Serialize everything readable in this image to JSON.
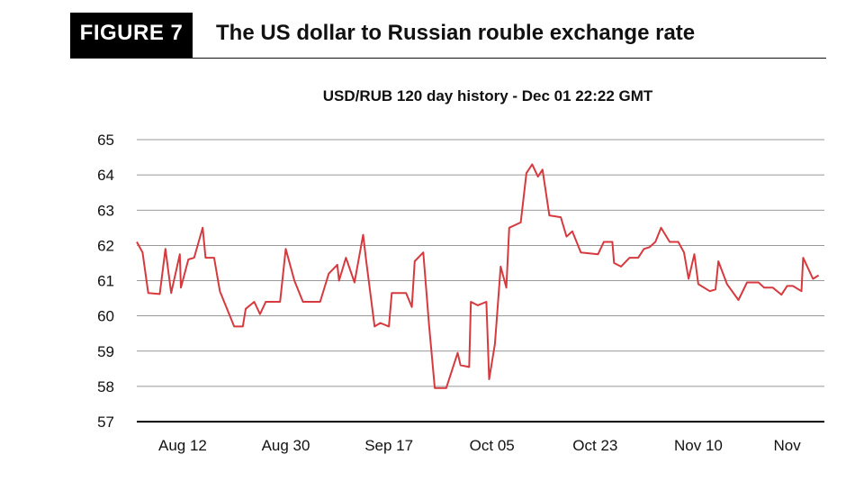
{
  "figure": {
    "badge": "FIGURE 7",
    "title": "The US dollar to Russian rouble exchange rate"
  },
  "colors": {
    "line": "#d63a3f",
    "grid": "#777777",
    "axis": "#000000"
  },
  "chart_data": {
    "type": "line",
    "title": "USD/RUB 120 day history - Dec 01 22:22 GMT",
    "xlabel": "",
    "ylabel": "",
    "ylim": [
      57,
      65
    ],
    "xlim": [
      0,
      120
    ],
    "yticks": [
      57,
      58,
      59,
      60,
      61,
      62,
      63,
      64,
      65
    ],
    "xticks": [
      {
        "x": 8,
        "label": "Aug 12"
      },
      {
        "x": 26,
        "label": "Aug 30"
      },
      {
        "x": 44,
        "label": "Sep 17"
      },
      {
        "x": 62,
        "label": "Oct 05"
      },
      {
        "x": 80,
        "label": "Oct 23"
      },
      {
        "x": 98,
        "label": "Nov 10"
      },
      {
        "x": 113.5,
        "label": "Nov"
      }
    ],
    "grid": true,
    "legend": "none",
    "series": [
      {
        "values": [
          [
            0,
            62.1
          ],
          [
            1,
            61.8
          ],
          [
            2,
            60.65
          ],
          [
            4,
            60.62
          ],
          [
            5,
            61.9
          ],
          [
            6,
            60.65
          ],
          [
            7.5,
            61.75
          ],
          [
            7.7,
            60.8
          ],
          [
            9,
            61.6
          ],
          [
            10,
            61.65
          ],
          [
            11.5,
            62.5
          ],
          [
            12,
            61.65
          ],
          [
            13.5,
            61.65
          ],
          [
            14.5,
            60.7
          ],
          [
            17,
            59.7
          ],
          [
            18.5,
            59.7
          ],
          [
            19,
            60.2
          ],
          [
            20.5,
            60.4
          ],
          [
            21.5,
            60.05
          ],
          [
            22.5,
            60.4
          ],
          [
            25,
            60.4
          ],
          [
            26,
            61.9
          ],
          [
            27.5,
            61.0
          ],
          [
            29,
            60.4
          ],
          [
            32,
            60.4
          ],
          [
            33.5,
            61.2
          ],
          [
            35,
            61.45
          ],
          [
            35.3,
            61.0
          ],
          [
            36.5,
            61.65
          ],
          [
            38,
            60.95
          ],
          [
            39.5,
            62.3
          ],
          [
            40,
            61.6
          ],
          [
            41.5,
            59.7
          ],
          [
            42.5,
            59.8
          ],
          [
            44,
            59.7
          ],
          [
            44.5,
            60.65
          ],
          [
            47,
            60.65
          ],
          [
            48,
            60.25
          ],
          [
            48.5,
            61.55
          ],
          [
            50,
            61.8
          ],
          [
            51,
            59.75
          ],
          [
            52,
            57.95
          ],
          [
            54,
            57.95
          ],
          [
            56,
            58.95
          ],
          [
            56.5,
            58.6
          ],
          [
            58,
            58.55
          ],
          [
            58.3,
            60.4
          ],
          [
            59.5,
            60.3
          ],
          [
            61,
            60.4
          ],
          [
            61.5,
            58.2
          ],
          [
            62.5,
            59.2
          ],
          [
            63.5,
            61.4
          ],
          [
            64.5,
            60.8
          ],
          [
            65,
            62.5
          ],
          [
            67,
            62.65
          ],
          [
            68,
            64.05
          ],
          [
            69,
            64.3
          ],
          [
            70,
            63.95
          ],
          [
            70.8,
            64.15
          ],
          [
            72,
            62.85
          ],
          [
            74,
            62.8
          ],
          [
            75,
            62.25
          ],
          [
            76,
            62.4
          ],
          [
            77.5,
            61.8
          ],
          [
            80.5,
            61.75
          ],
          [
            81.5,
            62.1
          ],
          [
            83,
            62.1
          ],
          [
            83.3,
            61.5
          ],
          [
            84.5,
            61.4
          ],
          [
            86,
            61.65
          ],
          [
            87.5,
            61.65
          ],
          [
            88.5,
            61.9
          ],
          [
            89.5,
            61.95
          ],
          [
            90.5,
            62.1
          ],
          [
            91.5,
            62.5
          ],
          [
            93,
            62.1
          ],
          [
            94.5,
            62.1
          ],
          [
            95.5,
            61.8
          ],
          [
            96.3,
            61.05
          ],
          [
            97.3,
            61.75
          ],
          [
            98,
            60.9
          ],
          [
            100,
            60.7
          ],
          [
            101,
            60.75
          ],
          [
            101.5,
            61.55
          ],
          [
            103,
            60.9
          ],
          [
            105,
            60.45
          ],
          [
            106.5,
            60.95
          ],
          [
            108.5,
            60.95
          ],
          [
            109.5,
            60.8
          ],
          [
            111,
            60.8
          ],
          [
            112.5,
            60.6
          ],
          [
            113.5,
            60.85
          ],
          [
            114.5,
            60.85
          ],
          [
            116,
            60.7
          ],
          [
            116.3,
            61.65
          ],
          [
            118,
            61.05
          ],
          [
            119,
            61.15
          ]
        ]
      }
    ]
  }
}
